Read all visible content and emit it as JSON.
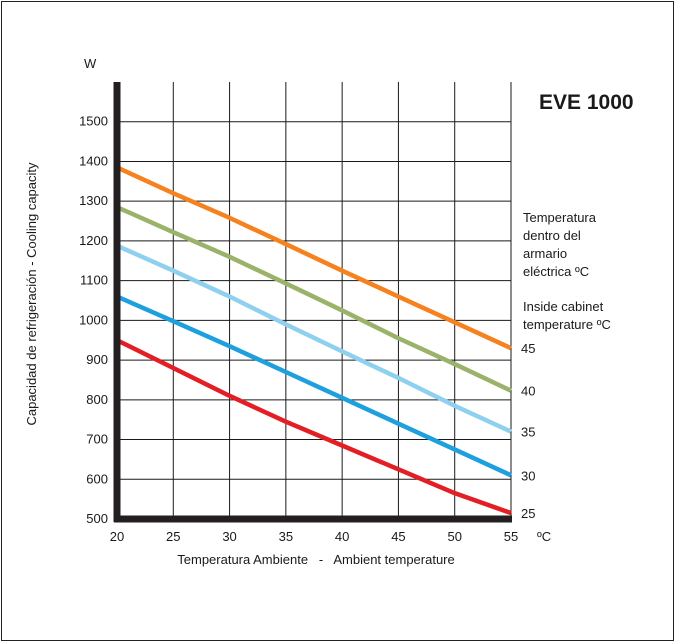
{
  "chart_data": {
    "type": "line",
    "title": "EVE 1000",
    "y_unit": "W",
    "xlabel": "Temperatura Ambiente   -   Ambient temperature",
    "x_unit": "ºC",
    "ylabel": "Capacidad de refrigeración - Cooling capacity",
    "xlim": [
      20,
      55
    ],
    "ylim": [
      500,
      1600
    ],
    "x_ticks": [
      "20",
      "25",
      "30",
      "35",
      "40",
      "45",
      "50",
      "55"
    ],
    "y_ticks": [
      "500",
      "600",
      "700",
      "800",
      "900",
      "1000",
      "1100",
      "1200",
      "1300",
      "1400",
      "1500"
    ],
    "grid": true,
    "legend_title_es": [
      "Temperatura",
      "dentro del",
      "armario",
      "eléctrica ºC"
    ],
    "legend_title_en": [
      "Inside cabinet",
      "temperature ºC"
    ],
    "x": [
      20,
      25,
      30,
      35,
      40,
      45,
      50,
      55
    ],
    "series": [
      {
        "name": "45",
        "color": "#f5821f",
        "values": [
          1385,
          1320,
          1258,
          1192,
          1125,
          1060,
          995,
          930
        ]
      },
      {
        "name": "40",
        "color": "#9bb26a",
        "values": [
          1285,
          1222,
          1160,
          1093,
          1025,
          955,
          890,
          823
        ]
      },
      {
        "name": "35",
        "color": "#8fd0ef",
        "values": [
          1188,
          1125,
          1060,
          990,
          922,
          855,
          785,
          720
        ]
      },
      {
        "name": "30",
        "color": "#1ea0df",
        "values": [
          1060,
          998,
          935,
          870,
          805,
          740,
          675,
          610
        ]
      },
      {
        "name": "25",
        "color": "#e31e24",
        "values": [
          950,
          880,
          810,
          745,
          685,
          625,
          565,
          515
        ]
      }
    ]
  }
}
